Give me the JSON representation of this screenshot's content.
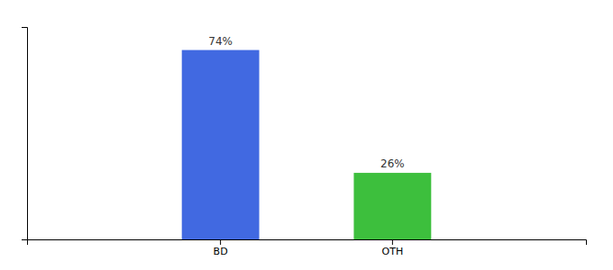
{
  "chart_data": {
    "type": "bar",
    "categories": [
      "BD",
      "OTH"
    ],
    "values": [
      74,
      26
    ],
    "value_labels": [
      "74%",
      "26%"
    ],
    "colors": [
      "#4169e1",
      "#3dbf3d"
    ],
    "ylim": [
      0,
      83
    ],
    "grid": false,
    "data_labels": true,
    "tick_labels": "x"
  }
}
